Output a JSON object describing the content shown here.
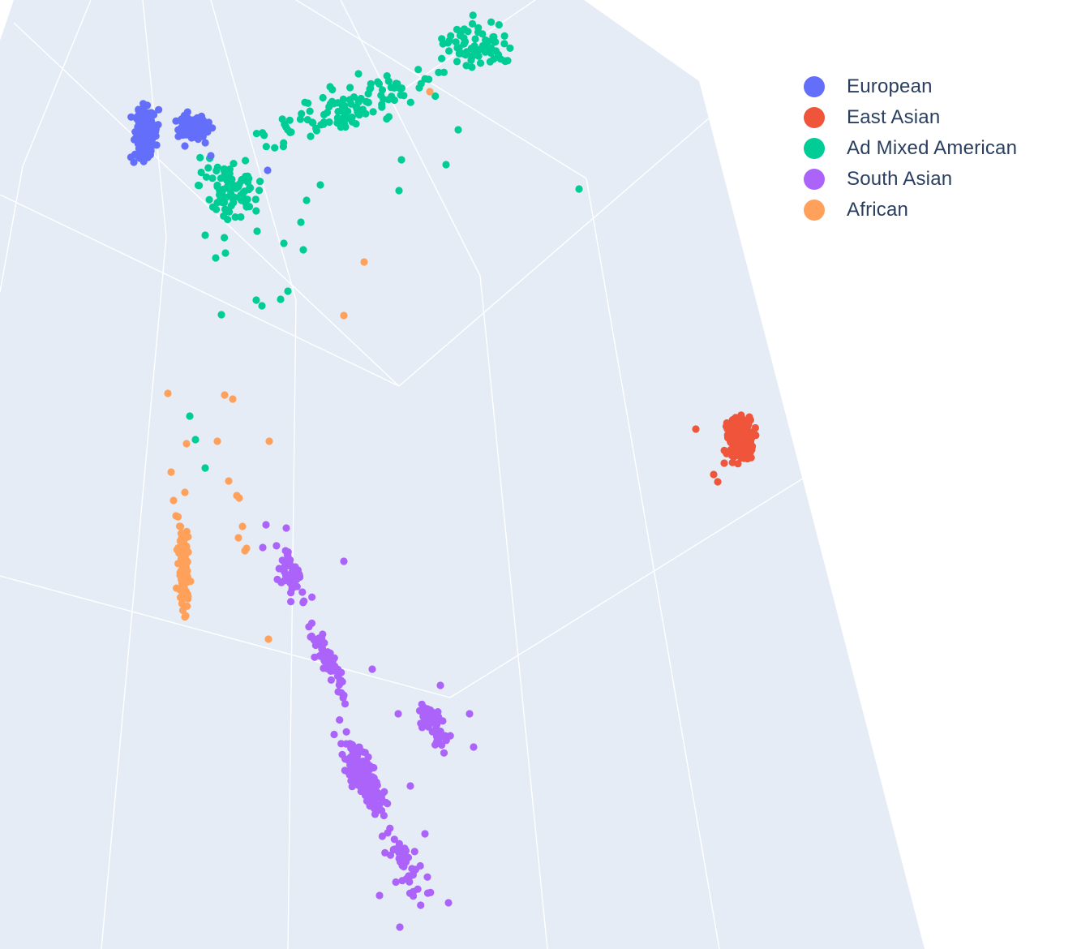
{
  "chart_data": {
    "type": "scatter",
    "subtype": "3d-scatter",
    "title": "",
    "grid": true,
    "legend_position": "top-right",
    "background_color": "#e5ecf6",
    "grid_color": "#ffffff",
    "series": [
      {
        "name": "European",
        "color": "#636efa",
        "approx_count": 500,
        "clusters": [
          {
            "center": [
              180,
              165
            ],
            "spread": [
              10,
              25
            ],
            "count": 300
          },
          {
            "center": [
              240,
              158
            ],
            "spread": [
              15,
              12
            ],
            "count": 160
          }
        ],
        "points": [
          [
            330,
            210
          ],
          [
            165,
            200
          ],
          [
            260,
            192
          ],
          [
            228,
            180
          ]
        ]
      },
      {
        "name": "East Asian",
        "color": "#ef553b",
        "approx_count": 500,
        "clusters": [
          {
            "center": [
              913,
              540
            ],
            "spread": [
              12,
              22
            ],
            "count": 260
          }
        ],
        "points": [
          [
            858,
            529
          ],
          [
            880,
            585
          ],
          [
            885,
            594
          ],
          [
            893,
            571
          ]
        ]
      },
      {
        "name": "Ad Mixed American",
        "color": "#00cc96",
        "approx_count": 350,
        "clusters": [
          {
            "center": [
              590,
              55
            ],
            "spread": [
              40,
              25
            ],
            "count": 70
          },
          {
            "center": [
              430,
              135
            ],
            "spread": [
              95,
              30
            ],
            "count": 120
          },
          {
            "center": [
              285,
              230
            ],
            "spread": [
              35,
              35
            ],
            "count": 90
          }
        ],
        "points": [
          [
            714,
            233
          ],
          [
            565,
            160
          ],
          [
            550,
            203
          ],
          [
            495,
            197
          ],
          [
            492,
            235
          ],
          [
            442,
            91
          ],
          [
            407,
            107
          ],
          [
            395,
            228
          ],
          [
            378,
            247
          ],
          [
            371,
            274
          ],
          [
            350,
            300
          ],
          [
            374,
            308
          ],
          [
            355,
            359
          ],
          [
            346,
            369
          ],
          [
            316,
            370
          ],
          [
            323,
            377
          ],
          [
            273,
            388
          ],
          [
            234,
            513
          ],
          [
            241,
            542
          ],
          [
            253,
            577
          ],
          [
            266,
            318
          ],
          [
            278,
            312
          ],
          [
            317,
            285
          ],
          [
            253,
            290
          ]
        ]
      },
      {
        "name": "South Asian",
        "color": "#ab63fa",
        "approx_count": 490,
        "clusters": [
          {
            "center": [
              355,
              705
            ],
            "spread": [
              22,
              28
            ],
            "count": 50
          },
          {
            "center": [
              405,
              815
            ],
            "spread": [
              15,
              45
            ],
            "count": 70
          },
          {
            "center": [
              450,
              960
            ],
            "spread": [
              22,
              35
            ],
            "count": 180
          },
          {
            "center": [
              533,
              892
            ],
            "spread": [
              17,
              24
            ],
            "count": 70
          },
          {
            "center": [
              495,
              1060
            ],
            "spread": [
              22,
              45
            ],
            "count": 50
          }
        ],
        "points": [
          [
            424,
            692
          ],
          [
            459,
            825
          ],
          [
            579,
            880
          ],
          [
            584,
            921
          ],
          [
            491,
            880
          ],
          [
            493,
            1143
          ],
          [
            553,
            1113
          ],
          [
            468,
            1104
          ],
          [
            543,
            845
          ],
          [
            506,
            969
          ],
          [
            524,
            1028
          ],
          [
            328,
            647
          ],
          [
            353,
            651
          ],
          [
            324,
            675
          ]
        ]
      },
      {
        "name": "African",
        "color": "#ffa15a",
        "approx_count": 130,
        "clusters": [
          {
            "center": [
              227,
              700
            ],
            "spread": [
              6,
              45
            ],
            "count": 110
          }
        ],
        "points": [
          [
            530,
            113
          ],
          [
            449,
            323
          ],
          [
            424,
            389
          ],
          [
            207,
            485
          ],
          [
            277,
            487
          ],
          [
            287,
            492
          ],
          [
            230,
            547
          ],
          [
            268,
            544
          ],
          [
            332,
            544
          ],
          [
            211,
            582
          ],
          [
            282,
            593
          ],
          [
            292,
            611
          ],
          [
            295,
            614
          ],
          [
            299,
            649
          ],
          [
            294,
            663
          ],
          [
            304,
            676
          ],
          [
            302,
            679
          ],
          [
            331,
            788
          ],
          [
            214,
            617
          ],
          [
            228,
            607
          ],
          [
            217,
            636
          ]
        ]
      }
    ]
  }
}
